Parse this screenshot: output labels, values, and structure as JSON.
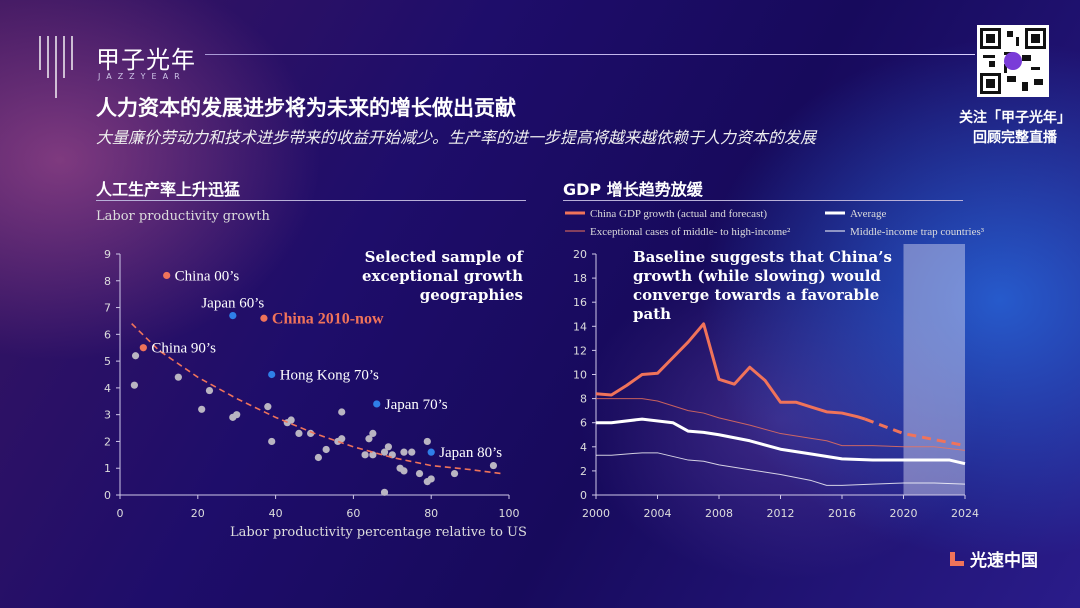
{
  "brand": {
    "name": "甲子光年",
    "name_en": "JAZZYEAR"
  },
  "header": {
    "title": "人力资本的发展进步将为未来的增长做出贡献",
    "subtitle": "大量廉价劳动力和技术进步带来的收益开始减少。生产率的进一步提高将越来越依赖于人力资本的发展"
  },
  "follow": {
    "line1": "关注「甲子光年」",
    "line2": "回顾完整直播"
  },
  "footer_logo": "光速中国",
  "chart_data": [
    {
      "type": "scatter",
      "section_title": "人工生产率上升迅猛",
      "ylabel": "Labor productivity growth",
      "xlabel": "Labor productivity percentage relative to US",
      "xlim": [
        0,
        100
      ],
      "ylim": [
        0,
        9
      ],
      "xticks": [
        0,
        20,
        40,
        60,
        80,
        100
      ],
      "yticks": [
        0,
        1,
        2,
        3,
        4,
        5,
        6,
        7,
        8,
        9
      ],
      "annotation": "Selected sample of exceptional growth geographies",
      "points": [
        [
          4,
          5.2
        ],
        [
          3.7,
          4.1
        ],
        [
          15,
          4.4
        ],
        [
          23,
          3.9
        ],
        [
          21,
          3.2
        ],
        [
          29,
          2.9
        ],
        [
          30,
          3.0
        ],
        [
          38,
          3.3
        ],
        [
          39,
          2.0
        ],
        [
          43,
          2.7
        ],
        [
          44,
          2.8
        ],
        [
          46,
          2.3
        ],
        [
          49,
          2.3
        ],
        [
          51,
          1.4
        ],
        [
          53,
          1.7
        ],
        [
          56,
          2.0
        ],
        [
          57,
          2.1
        ],
        [
          57,
          3.1
        ],
        [
          63,
          1.5
        ],
        [
          64,
          2.1
        ],
        [
          65,
          2.3
        ],
        [
          65,
          1.5
        ],
        [
          68,
          1.6
        ],
        [
          69,
          1.8
        ],
        [
          70,
          1.5
        ],
        [
          68,
          0.1
        ],
        [
          72,
          1.0
        ],
        [
          73,
          0.9
        ],
        [
          73,
          1.6
        ],
        [
          75,
          1.6
        ],
        [
          77,
          0.8
        ],
        [
          79,
          2.0
        ],
        [
          79,
          0.5
        ],
        [
          80,
          0.6
        ],
        [
          86,
          0.8
        ],
        [
          96,
          1.1
        ]
      ],
      "highlighted": [
        {
          "label": "China 00’s",
          "x": 12,
          "y": 8.2,
          "group": "china"
        },
        {
          "label": "Japan 60’s",
          "x": 29,
          "y": 6.7,
          "group": "japan"
        },
        {
          "label": "China 2010-now",
          "x": 37,
          "y": 6.6,
          "group": "china-now"
        },
        {
          "label": "China 90’s",
          "x": 6,
          "y": 5.5,
          "group": "china"
        },
        {
          "label": "Hong Kong 70’s",
          "x": 39,
          "y": 4.5,
          "group": "japan"
        },
        {
          "label": "Japan 70’s",
          "x": 66,
          "y": 3.4,
          "group": "japan"
        },
        {
          "label": "Japan 80’s",
          "x": 80,
          "y": 1.6,
          "group": "japan"
        }
      ],
      "trend": [
        [
          3,
          6.4
        ],
        [
          10,
          5.4
        ],
        [
          20,
          4.4
        ],
        [
          30,
          3.6
        ],
        [
          40,
          2.9
        ],
        [
          50,
          2.3
        ],
        [
          60,
          1.8
        ],
        [
          70,
          1.4
        ],
        [
          80,
          1.1
        ],
        [
          90,
          0.95
        ],
        [
          98,
          0.8
        ]
      ],
      "colors": {
        "gray": "#b9b5c2",
        "china": "#f0735a",
        "japan": "#2f7fe8",
        "trend": "#f0735a"
      }
    },
    {
      "type": "line",
      "section_title": "GDP 增长趋势放缓",
      "xlim": [
        2000,
        2024
      ],
      "ylim": [
        0,
        20
      ],
      "xticks": [
        2000,
        2004,
        2008,
        2012,
        2016,
        2020,
        2024
      ],
      "yticks": [
        0,
        2,
        4,
        6,
        8,
        10,
        12,
        14,
        16,
        18,
        20
      ],
      "annotation": "Baseline suggests that China’s growth (while slowing) would converge towards a favorable path",
      "forecast_shade": [
        2020,
        2024
      ],
      "series": [
        {
          "name": "China GDP growth (actual and forecast)",
          "color": "#f0735a",
          "width": 3,
          "x": [
            2000,
            2001,
            2002,
            2003,
            2004,
            2005,
            2006,
            2007,
            2008,
            2009,
            2010,
            2011,
            2012,
            2013,
            2014,
            2015,
            2016,
            2017,
            2017.5
          ],
          "y": [
            8.4,
            8.3,
            9.1,
            10.0,
            10.1,
            11.4,
            12.7,
            14.2,
            9.6,
            9.2,
            10.6,
            9.5,
            7.7,
            7.7,
            7.3,
            6.9,
            6.8,
            6.5,
            6.3
          ],
          "forecast_x": [
            2017.5,
            2020,
            2024
          ],
          "forecast_y": [
            6.3,
            5.1,
            4.1
          ]
        },
        {
          "name": "Average",
          "color": "#ffffff",
          "width": 3,
          "x": [
            2000,
            2001,
            2003,
            2005,
            2006,
            2007,
            2008,
            2010,
            2012,
            2014,
            2016,
            2018,
            2020,
            2022,
            2023,
            2024
          ],
          "y": [
            6.0,
            6.0,
            6.3,
            6.0,
            5.3,
            5.2,
            5.0,
            4.5,
            3.8,
            3.4,
            3.0,
            2.9,
            2.9,
            2.9,
            2.9,
            2.6
          ]
        },
        {
          "name": "Exceptional cases of middle- to high-income²",
          "color": "#f0735a",
          "width": 1,
          "x": [
            2000,
            2003,
            2004,
            2006,
            2007,
            2008,
            2010,
            2012,
            2014,
            2015,
            2016,
            2018,
            2020,
            2022,
            2024
          ],
          "y": [
            8.0,
            8.0,
            7.8,
            7.0,
            6.8,
            6.4,
            5.8,
            5.1,
            4.7,
            4.5,
            4.1,
            4.1,
            4.0,
            4.0,
            3.7
          ]
        },
        {
          "name": "Middle-income trap countries³",
          "color": "#ffffff",
          "width": 1,
          "x": [
            2000,
            2001,
            2003,
            2004,
            2006,
            2007,
            2008,
            2010,
            2012,
            2014,
            2015,
            2016,
            2018,
            2020,
            2022,
            2024
          ],
          "y": [
            3.3,
            3.3,
            3.5,
            3.5,
            2.9,
            2.8,
            2.5,
            2.1,
            1.7,
            1.2,
            0.8,
            0.8,
            0.9,
            1.0,
            1.0,
            0.9
          ]
        }
      ]
    }
  ]
}
